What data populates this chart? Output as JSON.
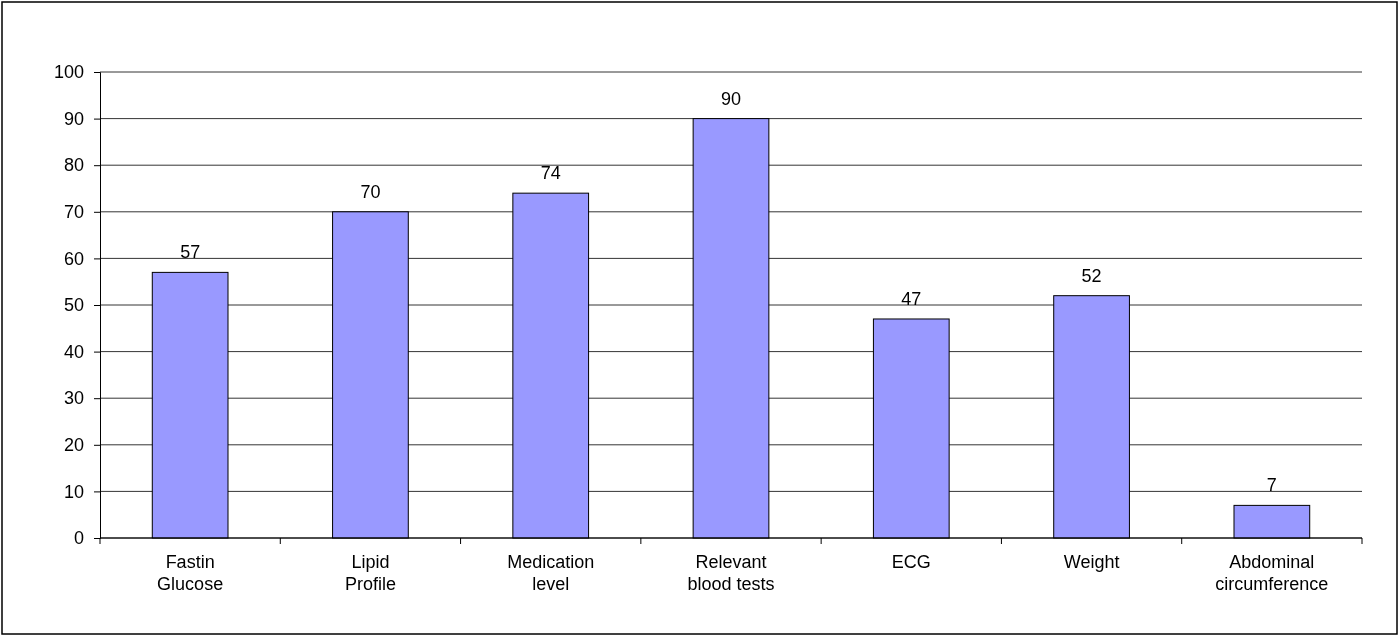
{
  "chart_data": {
    "type": "bar",
    "categories": [
      "Fastin\nGlucose",
      "Lipid\nProfile",
      "Medication\nlevel",
      "Relevant\nblood tests",
      "ECG",
      "Weight",
      "Abdominal\ncircumference"
    ],
    "values": [
      57,
      70,
      74,
      90,
      47,
      52,
      7
    ],
    "color": "#9999ff",
    "ylim": [
      0,
      100
    ],
    "yticks": [
      0,
      10,
      20,
      30,
      40,
      50,
      60,
      70,
      80,
      90,
      100
    ],
    "grid": "y",
    "data_labels": true
  }
}
